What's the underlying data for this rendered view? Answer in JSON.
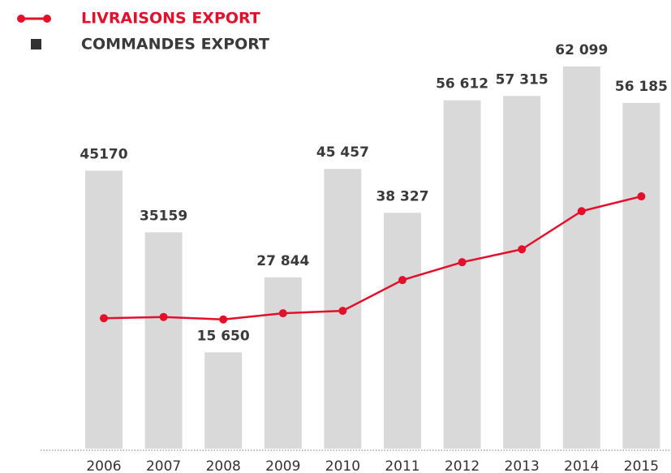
{
  "chart_data": {
    "type": "bar_line",
    "categories": [
      "2006",
      "2007",
      "2008",
      "2009",
      "2010",
      "2011",
      "2012",
      "2013",
      "2014",
      "2015"
    ],
    "series": [
      {
        "name": "LIVRAISONS EXPORT",
        "type": "line",
        "color": "#e30f2b",
        "values": [
          21200,
          21400,
          21000,
          22000,
          22400,
          27400,
          30300,
          32400,
          38600,
          41000
        ]
      },
      {
        "name": "COMMANDES EXPORT",
        "type": "bar",
        "color": "#d9d9d9",
        "values": [
          45170,
          35159,
          15650,
          27844,
          45457,
          38327,
          56612,
          57315,
          62099,
          56185
        ],
        "value_labels": [
          "45170",
          "35159",
          "15 650",
          "27 844",
          "45 457",
          "38 327",
          "56 612",
          "57 315",
          "62 099",
          "56 185"
        ]
      }
    ],
    "ylim": [
      0,
      65000
    ]
  }
}
